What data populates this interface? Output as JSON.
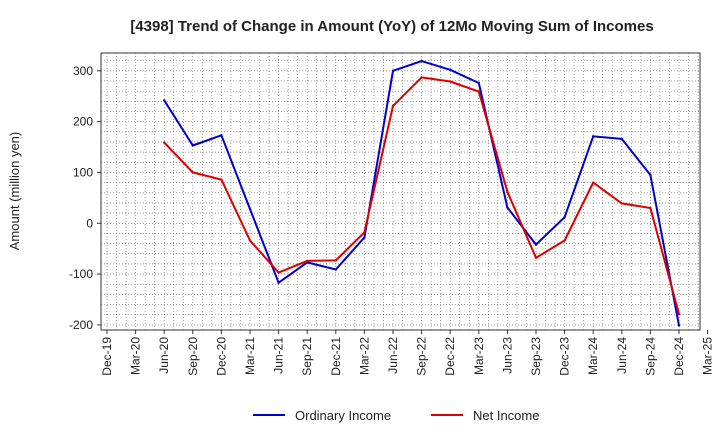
{
  "chart_data": {
    "type": "line",
    "title": "[4398]  Trend of Change in Amount (YoY) of 12Mo Moving Sum of Incomes",
    "xlabel": "",
    "ylabel": "Amount (million yen)",
    "ylim": [
      -210,
      335
    ],
    "yticks": [
      -200,
      -100,
      0,
      100,
      200,
      300
    ],
    "categories": [
      "Dec-19",
      "Mar-20",
      "Jun-20",
      "Sep-20",
      "Dec-20",
      "Mar-21",
      "Jun-21",
      "Sep-21",
      "Dec-21",
      "Mar-22",
      "Jun-22",
      "Sep-22",
      "Dec-22",
      "Mar-23",
      "Jun-23",
      "Sep-23",
      "Dec-23",
      "Mar-24",
      "Jun-24",
      "Sep-24",
      "Dec-24",
      "Mar-25"
    ],
    "x_tick_labels": [
      "Dec-19",
      "Mar-20",
      "Jun-20",
      "Sep-20",
      "Dec-20",
      "Mar-21",
      "Jun-21",
      "Sep-21",
      "Dec-21",
      "Mar-22",
      "Jun-22",
      "Sep-22",
      "Dec-22",
      "Mar-23",
      "Jun-23",
      "Sep-23",
      "Dec-23",
      "Mar-24",
      "Jun-24",
      "Sep-24",
      "Dec-24",
      "Mar-25"
    ],
    "grid": true,
    "legend_position": "bottom-center",
    "series": [
      {
        "name": "Ordinary Income",
        "color": "#0000cc",
        "values": [
          null,
          null,
          242,
          153,
          173,
          28,
          -117,
          -77,
          -91,
          -28,
          300,
          319,
          302,
          276,
          31,
          -42,
          12,
          171,
          166,
          95,
          -201,
          null
        ]
      },
      {
        "name": "Net Income",
        "color": "#dd0000",
        "values": [
          null,
          null,
          159,
          100,
          86,
          -34,
          -97,
          -74,
          -73,
          -18,
          231,
          287,
          279,
          259,
          62,
          -68,
          -34,
          80,
          39,
          30,
          -179,
          null
        ]
      }
    ]
  }
}
